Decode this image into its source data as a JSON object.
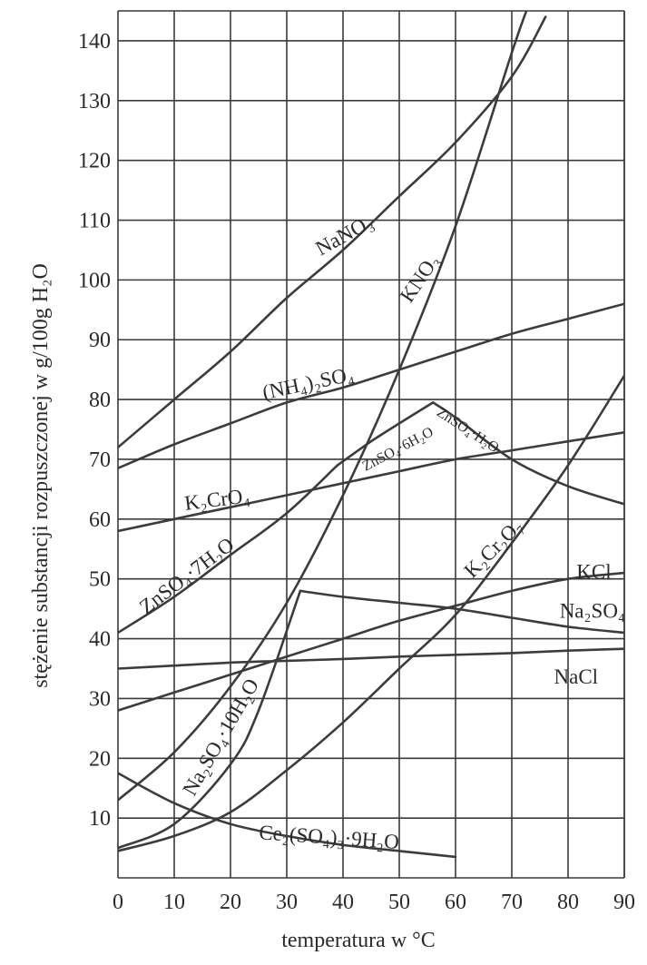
{
  "chart_data": {
    "type": "line",
    "xlabel": "temperatura w °C",
    "ylabel": "stężenie substancji rozpuszczonej w g/100g H₂O",
    "xlim": [
      0,
      90
    ],
    "ylim": [
      0,
      145
    ],
    "x_ticks": [
      "0",
      "10",
      "20",
      "30",
      "40",
      "50",
      "60",
      "70",
      "80",
      "90"
    ],
    "y_ticks": [
      "10",
      "20",
      "30",
      "40",
      "50",
      "60",
      "70",
      "80",
      "90",
      "100",
      "110",
      "120",
      "130",
      "140"
    ],
    "grid": true,
    "series": [
      {
        "name": "NaNO₃",
        "x": [
          0,
          10,
          20,
          30,
          40,
          50,
          60,
          70,
          76
        ],
        "y": [
          72,
          80,
          88,
          97,
          105,
          114,
          123,
          134,
          144
        ]
      },
      {
        "name": "KNO₃",
        "x": [
          0,
          10,
          20,
          30,
          40,
          50,
          60,
          70,
          73
        ],
        "y": [
          13,
          21,
          32,
          46,
          64,
          85,
          109,
          138,
          146
        ]
      },
      {
        "name": "(NH₄)₂SO₄",
        "x": [
          0,
          10,
          20,
          30,
          40,
          50,
          60,
          70,
          80,
          90
        ],
        "y": [
          68.5,
          72.5,
          76,
          79.5,
          82,
          85,
          88,
          91,
          93.5,
          96
        ]
      },
      {
        "name": "K₂CrO₄",
        "x": [
          0,
          10,
          20,
          30,
          40,
          50,
          60,
          70,
          80,
          90
        ],
        "y": [
          58,
          60,
          62,
          64,
          66,
          68,
          70,
          71.5,
          73,
          74.5
        ]
      },
      {
        "name": "ZnSO₄·7H₂O",
        "x": [
          0,
          10,
          20,
          30,
          39
        ],
        "y": [
          41,
          47,
          54,
          61,
          69
        ]
      },
      {
        "name": "ZnSO₄·6H₂O",
        "x": [
          39,
          45,
          50,
          56
        ],
        "y": [
          69,
          73,
          76,
          79.5
        ]
      },
      {
        "name": "ZnSO₄·H₂O",
        "x": [
          56,
          60,
          70,
          80,
          90
        ],
        "y": [
          79.5,
          77,
          70,
          65.5,
          62.5
        ]
      },
      {
        "name": "K₂Cr₂O₇",
        "x": [
          0,
          10,
          20,
          30,
          40,
          50,
          60,
          70,
          80,
          90
        ],
        "y": [
          4.5,
          7,
          11,
          18,
          26,
          35,
          44,
          56,
          69,
          84
        ]
      },
      {
        "name": "KCl",
        "x": [
          0,
          10,
          20,
          30,
          40,
          50,
          60,
          70,
          80,
          90
        ],
        "y": [
          28,
          31,
          34,
          37,
          40,
          43,
          45.5,
          48,
          50,
          51
        ]
      },
      {
        "name": "Na₂SO₄",
        "x": [
          32.4,
          40,
          50,
          60,
          70,
          80,
          90
        ],
        "y": [
          48,
          47,
          46,
          45,
          43.5,
          42,
          41
        ]
      },
      {
        "name": "Na₂SO₄·10H₂O",
        "x": [
          0,
          10,
          20,
          25,
          32.4
        ],
        "y": [
          5,
          9,
          19,
          28,
          48
        ]
      },
      {
        "name": "NaCl",
        "x": [
          0,
          10,
          20,
          30,
          40,
          50,
          60,
          70,
          80,
          90
        ],
        "y": [
          35,
          35.5,
          36,
          36.3,
          36.6,
          37,
          37.3,
          37.6,
          38,
          38.3
        ]
      },
      {
        "name": "Ce₂(SO₄)₃·9H₂O",
        "x": [
          0,
          10,
          20,
          30,
          40,
          50,
          60
        ],
        "y": [
          17.5,
          12.5,
          9,
          7,
          5.5,
          4.5,
          3.5
        ]
      }
    ],
    "labels": [
      {
        "series": "NaNO₃",
        "text": "NaNO₃",
        "x": 36,
        "y": 104,
        "angle": -29,
        "size": "normal"
      },
      {
        "series": "KNO₃",
        "text": "KNO₃",
        "x": 52,
        "y": 96,
        "angle": -56,
        "size": "normal"
      },
      {
        "series": "(NH₄)₂SO₄",
        "text": "(NH₄)₂SO₄",
        "x": 26,
        "y": 80,
        "angle": -12,
        "size": "normal"
      },
      {
        "series": "K₂CrO₄",
        "text": "K₂CrO₄",
        "x": 12,
        "y": 61.5,
        "angle": -7,
        "size": "normal"
      },
      {
        "series": "ZnSO₄·7H₂O",
        "text": "ZnSO₄·7H₂O",
        "x": 5,
        "y": 44,
        "angle": -37,
        "size": "normal"
      },
      {
        "series": "ZnSO₄·6H₂O",
        "text": "ZnSO₄·6H₂O",
        "x": 44,
        "y": 68,
        "angle": -28,
        "size": "small"
      },
      {
        "series": "ZnSO₄·H₂O",
        "text": "ZnSO₄·H₂O",
        "x": 56.5,
        "y": 77.5,
        "angle": 33,
        "size": "small"
      },
      {
        "series": "K₂Cr₂O₇",
        "text": "K₂Cr₂O₇",
        "x": 63,
        "y": 50,
        "angle": -45,
        "size": "normal"
      },
      {
        "series": "KCl",
        "text": "KCl",
        "x": 81.5,
        "y": 50,
        "angle": 0,
        "size": "normal"
      },
      {
        "series": "Na₂SO₄",
        "text": "Na₂SO₄",
        "x": 78.5,
        "y": 43.5,
        "angle": 0,
        "size": "normal"
      },
      {
        "series": "NaCl",
        "text": "NaCl",
        "x": 77.5,
        "y": 32.5,
        "angle": 0,
        "size": "normal"
      },
      {
        "series": "Na₂SO₄·10H₂O",
        "text": "Na₂SO₄·10H₂O",
        "x": 13.5,
        "y": 13.5,
        "angle": -60,
        "size": "normal"
      },
      {
        "series": "Ce₂(SO₄)₃·9H₂O",
        "text": "Ce₂(SO₄)₃·9H₂O",
        "x": 25,
        "y": 6.5,
        "angle": 4,
        "size": "normal"
      }
    ]
  }
}
